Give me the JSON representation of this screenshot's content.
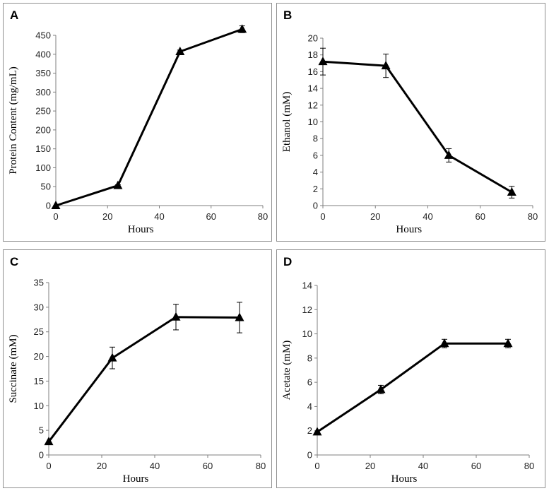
{
  "chart_data": [
    {
      "panel_label": "A",
      "type": "line",
      "title": "",
      "xlabel": "Hours",
      "ylabel": "Protein Content (mg/mL)",
      "xlim": [
        0,
        80
      ],
      "ylim": [
        0,
        450
      ],
      "xticks": [
        0,
        20,
        40,
        60,
        80
      ],
      "yticks": [
        0,
        50,
        100,
        150,
        200,
        250,
        300,
        350,
        400,
        450
      ],
      "grid": false,
      "marker": "triangle",
      "series": [
        {
          "name": "Protein Content",
          "x": [
            0,
            24,
            48,
            72
          ],
          "y": [
            0,
            53,
            407,
            466
          ],
          "err": [
            0,
            2,
            4,
            9
          ]
        }
      ]
    },
    {
      "panel_label": "B",
      "type": "line",
      "title": "",
      "xlabel": "Hours",
      "ylabel": "Ethanol (mM)",
      "xlim": [
        0,
        80
      ],
      "ylim": [
        0,
        20
      ],
      "xticks": [
        0,
        20,
        40,
        60,
        80
      ],
      "yticks": [
        0,
        2,
        4,
        6,
        8,
        10,
        12,
        14,
        16,
        18,
        20
      ],
      "grid": false,
      "marker": "triangle",
      "series": [
        {
          "name": "Ethanol",
          "x": [
            0,
            24,
            48,
            72
          ],
          "y": [
            17.2,
            16.7,
            6.0,
            1.6
          ],
          "err": [
            1.6,
            1.4,
            0.8,
            0.7
          ]
        }
      ]
    },
    {
      "panel_label": "C",
      "type": "line",
      "title": "",
      "xlabel": "Hours",
      "ylabel": "Succinate (mM)",
      "xlim": [
        0,
        80
      ],
      "ylim": [
        0,
        35
      ],
      "xticks": [
        0,
        20,
        40,
        60,
        80
      ],
      "yticks": [
        0,
        5,
        10,
        15,
        20,
        25,
        30,
        35
      ],
      "grid": false,
      "marker": "triangle",
      "series": [
        {
          "name": "Succinate",
          "x": [
            0,
            24,
            48,
            72
          ],
          "y": [
            2.7,
            19.7,
            28.0,
            27.9
          ],
          "err": [
            0,
            2.2,
            2.6,
            3.1
          ]
        }
      ]
    },
    {
      "panel_label": "D",
      "type": "line",
      "title": "",
      "xlabel": "Hours",
      "ylabel": "Acetate (mM)",
      "xlim": [
        0,
        80
      ],
      "ylim": [
        0,
        14
      ],
      "xticks": [
        0,
        20,
        40,
        60,
        80
      ],
      "yticks": [
        0,
        2,
        4,
        6,
        8,
        10,
        12,
        14
      ],
      "grid": false,
      "marker": "triangle",
      "series": [
        {
          "name": "Acetate",
          "x": [
            0,
            24,
            48,
            72
          ],
          "y": [
            1.9,
            5.4,
            9.2,
            9.2
          ],
          "err": [
            0,
            0.35,
            0.35,
            0.35
          ]
        }
      ]
    }
  ]
}
